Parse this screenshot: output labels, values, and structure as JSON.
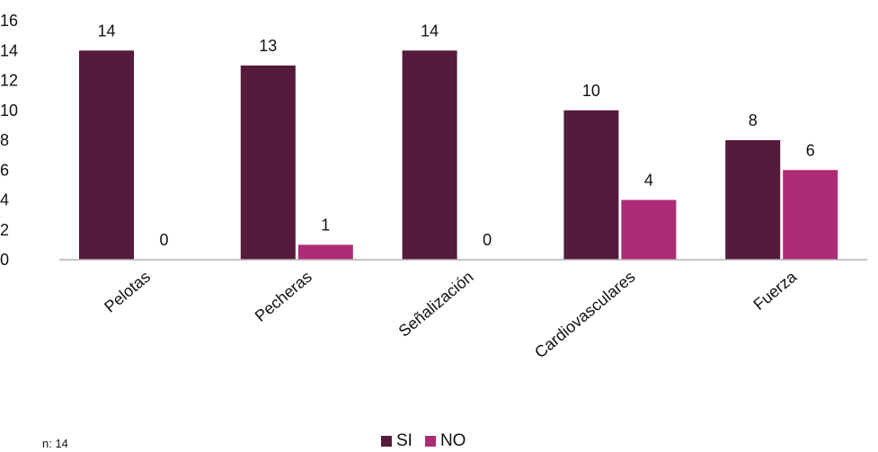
{
  "chart_data": {
    "type": "bar",
    "categories": [
      "Pelotas",
      "Pecheras",
      "Señalización",
      "Cardiovasculares",
      "Fuerza"
    ],
    "series": [
      {
        "name": "SI",
        "values": [
          14,
          13,
          14,
          10,
          8
        ],
        "color": "#561a3d"
      },
      {
        "name": "NO",
        "values": [
          0,
          1,
          0,
          4,
          6
        ],
        "color": "#ad2b74"
      }
    ],
    "ylim": [
      0,
      16
    ],
    "yticks": [
      0,
      2,
      4,
      6,
      8,
      10,
      12,
      14,
      16
    ],
    "grid": false,
    "legend": "bottom"
  },
  "note": "n: 14"
}
